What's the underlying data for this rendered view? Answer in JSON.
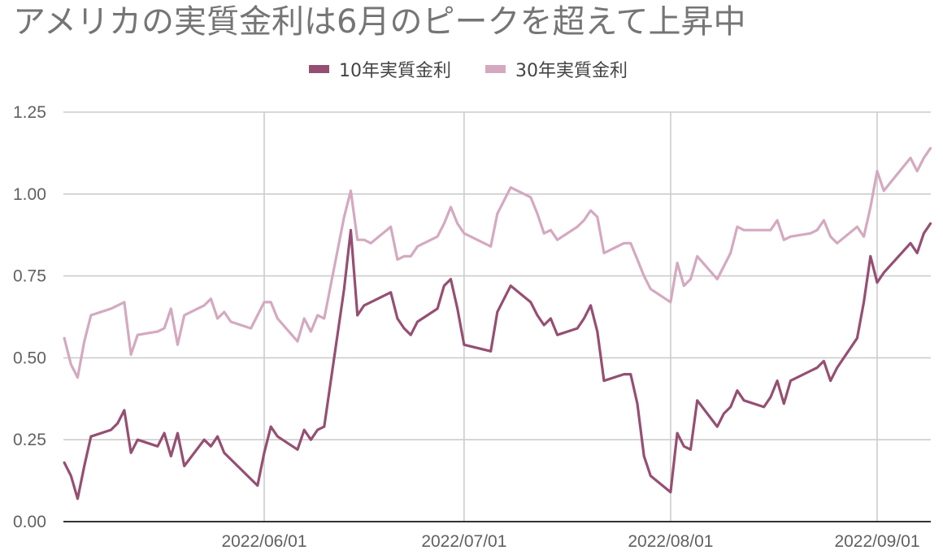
{
  "title": "アメリカの実質金利は6月のピークを超えて上昇中",
  "chart_data": {
    "type": "line",
    "title": "アメリカの実質金利は6月のピークを超えて上昇中",
    "xlabel": "",
    "ylabel": "",
    "ylim": [
      0,
      1.25
    ],
    "yticks": [
      "0.00",
      "0.25",
      "0.50",
      "0.75",
      "1.00",
      "1.25"
    ],
    "xlim": [
      "2022-05-02",
      "2022-09-08"
    ],
    "xticks": [
      "2022/06/01",
      "2022/07/01",
      "2022/08/01",
      "2022/09/01"
    ],
    "legend_position": "top",
    "grid": true,
    "series": [
      {
        "name": "10年実質金利",
        "color": "#954f72",
        "points": [
          [
            "2022-05-02",
            0.18
          ],
          [
            "2022-05-03",
            0.14
          ],
          [
            "2022-05-04",
            0.07
          ],
          [
            "2022-05-05",
            0.17
          ],
          [
            "2022-05-06",
            0.26
          ],
          [
            "2022-05-09",
            0.28
          ],
          [
            "2022-05-10",
            0.3
          ],
          [
            "2022-05-11",
            0.34
          ],
          [
            "2022-05-12",
            0.21
          ],
          [
            "2022-05-13",
            0.25
          ],
          [
            "2022-05-16",
            0.23
          ],
          [
            "2022-05-17",
            0.27
          ],
          [
            "2022-05-18",
            0.2
          ],
          [
            "2022-05-19",
            0.27
          ],
          [
            "2022-05-20",
            0.17
          ],
          [
            "2022-05-23",
            0.25
          ],
          [
            "2022-05-24",
            0.23
          ],
          [
            "2022-05-25",
            0.26
          ],
          [
            "2022-05-26",
            0.21
          ],
          [
            "2022-05-27",
            0.19
          ],
          [
            "2022-05-30",
            0.13
          ],
          [
            "2022-05-31",
            0.11
          ],
          [
            "2022-06-01",
            0.21
          ],
          [
            "2022-06-02",
            0.29
          ],
          [
            "2022-06-03",
            0.26
          ],
          [
            "2022-06-06",
            0.22
          ],
          [
            "2022-06-07",
            0.28
          ],
          [
            "2022-06-08",
            0.25
          ],
          [
            "2022-06-09",
            0.28
          ],
          [
            "2022-06-10",
            0.29
          ],
          [
            "2022-06-13",
            0.71
          ],
          [
            "2022-06-14",
            0.89
          ],
          [
            "2022-06-15",
            0.63
          ],
          [
            "2022-06-16",
            0.66
          ],
          [
            "2022-06-17",
            0.67
          ],
          [
            "2022-06-20",
            0.7
          ],
          [
            "2022-06-21",
            0.62
          ],
          [
            "2022-06-22",
            0.59
          ],
          [
            "2022-06-23",
            0.57
          ],
          [
            "2022-06-24",
            0.61
          ],
          [
            "2022-06-27",
            0.65
          ],
          [
            "2022-06-28",
            0.72
          ],
          [
            "2022-06-29",
            0.74
          ],
          [
            "2022-06-30",
            0.65
          ],
          [
            "2022-07-01",
            0.54
          ],
          [
            "2022-07-05",
            0.52
          ],
          [
            "2022-07-06",
            0.64
          ],
          [
            "2022-07-07",
            0.68
          ],
          [
            "2022-07-08",
            0.72
          ],
          [
            "2022-07-11",
            0.67
          ],
          [
            "2022-07-12",
            0.63
          ],
          [
            "2022-07-13",
            0.6
          ],
          [
            "2022-07-14",
            0.62
          ],
          [
            "2022-07-15",
            0.57
          ],
          [
            "2022-07-18",
            0.59
          ],
          [
            "2022-07-19",
            0.62
          ],
          [
            "2022-07-20",
            0.66
          ],
          [
            "2022-07-21",
            0.58
          ],
          [
            "2022-07-22",
            0.43
          ],
          [
            "2022-07-25",
            0.45
          ],
          [
            "2022-07-26",
            0.45
          ],
          [
            "2022-07-27",
            0.36
          ],
          [
            "2022-07-28",
            0.2
          ],
          [
            "2022-07-29",
            0.14
          ],
          [
            "2022-08-01",
            0.09
          ],
          [
            "2022-08-02",
            0.27
          ],
          [
            "2022-08-03",
            0.23
          ],
          [
            "2022-08-04",
            0.22
          ],
          [
            "2022-08-05",
            0.37
          ],
          [
            "2022-08-08",
            0.29
          ],
          [
            "2022-08-09",
            0.33
          ],
          [
            "2022-08-10",
            0.35
          ],
          [
            "2022-08-11",
            0.4
          ],
          [
            "2022-08-12",
            0.37
          ],
          [
            "2022-08-15",
            0.35
          ],
          [
            "2022-08-16",
            0.38
          ],
          [
            "2022-08-17",
            0.43
          ],
          [
            "2022-08-18",
            0.36
          ],
          [
            "2022-08-19",
            0.43
          ],
          [
            "2022-08-22",
            0.46
          ],
          [
            "2022-08-23",
            0.47
          ],
          [
            "2022-08-24",
            0.49
          ],
          [
            "2022-08-25",
            0.43
          ],
          [
            "2022-08-26",
            0.47
          ],
          [
            "2022-08-29",
            0.56
          ],
          [
            "2022-08-30",
            0.67
          ],
          [
            "2022-08-31",
            0.81
          ],
          [
            "2022-09-01",
            0.73
          ],
          [
            "2022-09-02",
            0.76
          ],
          [
            "2022-09-06",
            0.85
          ],
          [
            "2022-09-07",
            0.82
          ],
          [
            "2022-09-08",
            0.88
          ],
          [
            "2022-09-09",
            0.91
          ]
        ]
      },
      {
        "name": "30年実質金利",
        "color": "#d4a9c0",
        "points": [
          [
            "2022-05-02",
            0.56
          ],
          [
            "2022-05-03",
            0.48
          ],
          [
            "2022-05-04",
            0.44
          ],
          [
            "2022-05-05",
            0.55
          ],
          [
            "2022-05-06",
            0.63
          ],
          [
            "2022-05-09",
            0.65
          ],
          [
            "2022-05-10",
            0.66
          ],
          [
            "2022-05-11",
            0.67
          ],
          [
            "2022-05-12",
            0.51
          ],
          [
            "2022-05-13",
            0.57
          ],
          [
            "2022-05-16",
            0.58
          ],
          [
            "2022-05-17",
            0.59
          ],
          [
            "2022-05-18",
            0.65
          ],
          [
            "2022-05-19",
            0.54
          ],
          [
            "2022-05-20",
            0.63
          ],
          [
            "2022-05-23",
            0.66
          ],
          [
            "2022-05-24",
            0.68
          ],
          [
            "2022-05-25",
            0.62
          ],
          [
            "2022-05-26",
            0.64
          ],
          [
            "2022-05-27",
            0.61
          ],
          [
            "2022-05-30",
            0.59
          ],
          [
            "2022-05-31",
            0.63
          ],
          [
            "2022-06-01",
            0.67
          ],
          [
            "2022-06-02",
            0.67
          ],
          [
            "2022-06-03",
            0.62
          ],
          [
            "2022-06-06",
            0.55
          ],
          [
            "2022-06-07",
            0.62
          ],
          [
            "2022-06-08",
            0.58
          ],
          [
            "2022-06-09",
            0.63
          ],
          [
            "2022-06-10",
            0.62
          ],
          [
            "2022-06-13",
            0.93
          ],
          [
            "2022-06-14",
            1.01
          ],
          [
            "2022-06-15",
            0.86
          ],
          [
            "2022-06-16",
            0.86
          ],
          [
            "2022-06-17",
            0.85
          ],
          [
            "2022-06-20",
            0.9
          ],
          [
            "2022-06-21",
            0.8
          ],
          [
            "2022-06-22",
            0.81
          ],
          [
            "2022-06-23",
            0.81
          ],
          [
            "2022-06-24",
            0.84
          ],
          [
            "2022-06-27",
            0.87
          ],
          [
            "2022-06-28",
            0.91
          ],
          [
            "2022-06-29",
            0.96
          ],
          [
            "2022-06-30",
            0.91
          ],
          [
            "2022-07-01",
            0.88
          ],
          [
            "2022-07-05",
            0.84
          ],
          [
            "2022-07-06",
            0.94
          ],
          [
            "2022-07-07",
            0.98
          ],
          [
            "2022-07-08",
            1.02
          ],
          [
            "2022-07-11",
            0.99
          ],
          [
            "2022-07-12",
            0.94
          ],
          [
            "2022-07-13",
            0.88
          ],
          [
            "2022-07-14",
            0.89
          ],
          [
            "2022-07-15",
            0.86
          ],
          [
            "2022-07-18",
            0.9
          ],
          [
            "2022-07-19",
            0.92
          ],
          [
            "2022-07-20",
            0.95
          ],
          [
            "2022-07-21",
            0.93
          ],
          [
            "2022-07-22",
            0.82
          ],
          [
            "2022-07-25",
            0.85
          ],
          [
            "2022-07-26",
            0.85
          ],
          [
            "2022-07-27",
            0.8
          ],
          [
            "2022-07-28",
            0.75
          ],
          [
            "2022-07-29",
            0.71
          ],
          [
            "2022-08-01",
            0.67
          ],
          [
            "2022-08-02",
            0.79
          ],
          [
            "2022-08-03",
            0.72
          ],
          [
            "2022-08-04",
            0.74
          ],
          [
            "2022-08-05",
            0.81
          ],
          [
            "2022-08-08",
            0.74
          ],
          [
            "2022-08-09",
            0.78
          ],
          [
            "2022-08-10",
            0.82
          ],
          [
            "2022-08-11",
            0.9
          ],
          [
            "2022-08-12",
            0.89
          ],
          [
            "2022-08-15",
            0.89
          ],
          [
            "2022-08-16",
            0.89
          ],
          [
            "2022-08-17",
            0.92
          ],
          [
            "2022-08-18",
            0.86
          ],
          [
            "2022-08-19",
            0.87
          ],
          [
            "2022-08-22",
            0.88
          ],
          [
            "2022-08-23",
            0.89
          ],
          [
            "2022-08-24",
            0.92
          ],
          [
            "2022-08-25",
            0.87
          ],
          [
            "2022-08-26",
            0.85
          ],
          [
            "2022-08-29",
            0.9
          ],
          [
            "2022-08-30",
            0.87
          ],
          [
            "2022-08-31",
            0.96
          ],
          [
            "2022-09-01",
            1.07
          ],
          [
            "2022-09-02",
            1.01
          ],
          [
            "2022-09-06",
            1.11
          ],
          [
            "2022-09-07",
            1.07
          ],
          [
            "2022-09-08",
            1.11
          ],
          [
            "2022-09-09",
            1.14
          ]
        ]
      }
    ]
  }
}
